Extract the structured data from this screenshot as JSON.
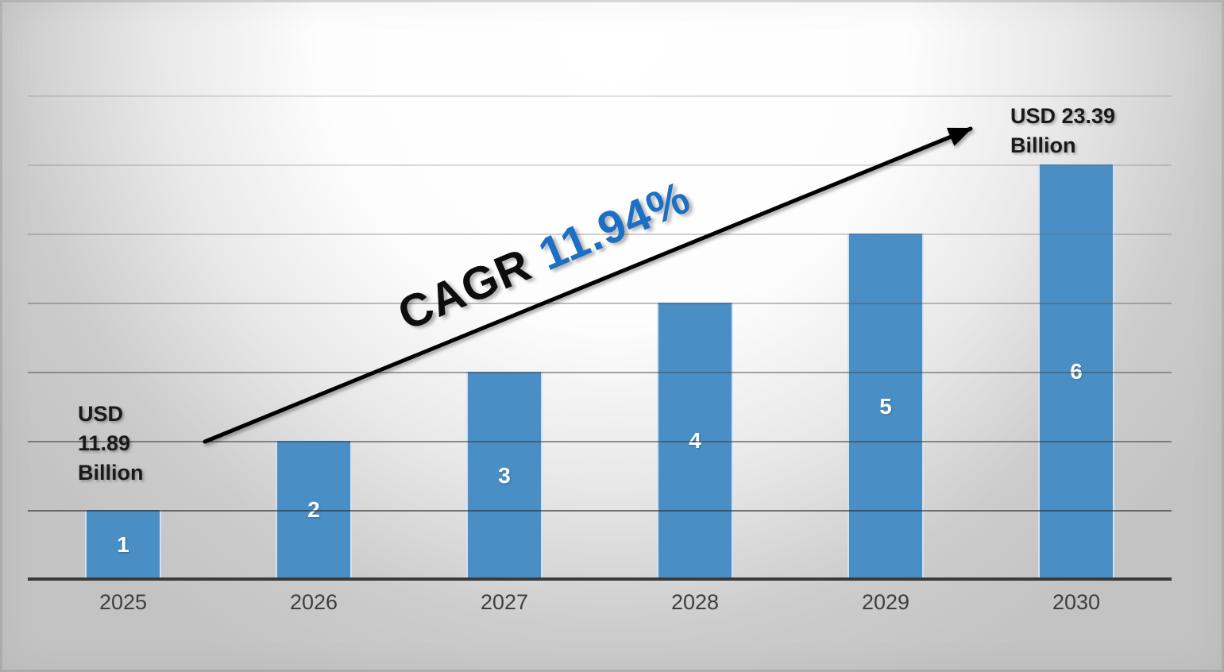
{
  "chart_data": {
    "type": "bar",
    "title": "",
    "xlabel": "",
    "ylabel": "",
    "categories": [
      "2025",
      "2026",
      "2027",
      "2028",
      "2029",
      "2030"
    ],
    "values": [
      1,
      2,
      3,
      4,
      5,
      6
    ],
    "bar_labels": [
      "1",
      "2",
      "3",
      "4",
      "5",
      "6"
    ],
    "ylim": [
      0,
      7
    ],
    "grid": true,
    "legend": false,
    "annotated_values_usd_billion": {
      "2025": 11.89,
      "2030": 23.39
    },
    "annotations": {
      "start_value": {
        "lines": [
          "USD",
          "11.89",
          "Billion"
        ]
      },
      "end_value": {
        "lines": [
          "USD 23.39",
          "Billion"
        ]
      },
      "cagr_label": "CAGR",
      "cagr_value": "11.94%"
    }
  },
  "colors": {
    "bar": "#4A8EC6",
    "cagr_value_blue": "#1C6FC4",
    "axis_line": "#3A3A3A",
    "tick_label": "#3F3F3F",
    "annotation_text": "#1A1A1A",
    "bar_label_text": "#FFFFFF"
  }
}
